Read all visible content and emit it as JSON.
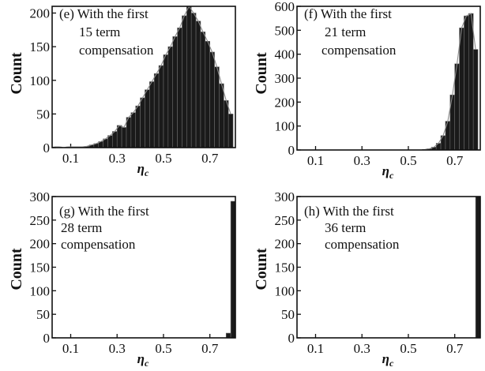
{
  "chart_data": [
    {
      "type": "bar",
      "panel": "(e)",
      "annotation": [
        "(e) With the first",
        "15 term",
        "compensation"
      ],
      "xlabel": "η",
      "xlabel_sub": "c",
      "ylabel": "Count",
      "xlim": [
        0.02,
        0.81
      ],
      "ylim": [
        0,
        210
      ],
      "xticks": [
        0.1,
        0.3,
        0.5,
        0.7
      ],
      "yticks": [
        0,
        50,
        100,
        150,
        200
      ],
      "bin_width": 0.02,
      "bin_centers": [
        0.03,
        0.05,
        0.07,
        0.09,
        0.11,
        0.13,
        0.15,
        0.17,
        0.19,
        0.21,
        0.23,
        0.25,
        0.27,
        0.29,
        0.31,
        0.33,
        0.35,
        0.37,
        0.39,
        0.41,
        0.43,
        0.45,
        0.47,
        0.49,
        0.51,
        0.53,
        0.55,
        0.57,
        0.59,
        0.61,
        0.63,
        0.65,
        0.67,
        0.69,
        0.71,
        0.73,
        0.75,
        0.77,
        0.79
      ],
      "values": [
        1,
        1,
        0,
        1,
        1,
        1,
        1,
        2,
        4,
        6,
        9,
        13,
        18,
        24,
        33,
        30,
        45,
        52,
        62,
        74,
        86,
        98,
        110,
        122,
        138,
        150,
        165,
        178,
        196,
        210,
        200,
        188,
        172,
        158,
        142,
        120,
        95,
        70,
        50
      ],
      "fit": true
    },
    {
      "type": "bar",
      "panel": "(f)",
      "annotation": [
        "(f) With the first",
        "21 term",
        "compensation"
      ],
      "xlabel": "η",
      "xlabel_sub": "c",
      "ylabel": "Count",
      "xlim": [
        0.02,
        0.81
      ],
      "ylim": [
        0,
        600
      ],
      "xticks": [
        0.1,
        0.3,
        0.5,
        0.7
      ],
      "yticks": [
        0,
        100,
        200,
        300,
        400,
        500,
        600
      ],
      "bin_width": 0.02,
      "bin_centers": [
        0.57,
        0.59,
        0.61,
        0.63,
        0.65,
        0.67,
        0.69,
        0.71,
        0.73,
        0.75,
        0.77,
        0.79
      ],
      "values": [
        2,
        5,
        12,
        28,
        60,
        120,
        230,
        360,
        510,
        560,
        570,
        420
      ],
      "fit": true
    },
    {
      "type": "bar",
      "panel": "(g)",
      "annotation": [
        "(g) With the first",
        "28 term",
        "compensation"
      ],
      "xlabel": "η",
      "xlabel_sub": "c",
      "ylabel": "Count",
      "xlim": [
        0.02,
        0.81
      ],
      "ylim": [
        0,
        300
      ],
      "xticks": [
        0.1,
        0.3,
        0.5,
        0.7
      ],
      "yticks": [
        0,
        50,
        100,
        150,
        200,
        250,
        300
      ],
      "bin_width": 0.02,
      "bin_centers": [
        0.78,
        0.8
      ],
      "values": [
        10,
        290
      ],
      "fit": false
    },
    {
      "type": "bar",
      "panel": "(h)",
      "annotation": [
        "(h) With the first",
        "36 term",
        "compensation"
      ],
      "xlabel": "η",
      "xlabel_sub": "c",
      "ylabel": "Count",
      "xlim": [
        0.02,
        0.81
      ],
      "ylim": [
        0,
        300
      ],
      "xticks": [
        0.1,
        0.3,
        0.5,
        0.7
      ],
      "yticks": [
        0,
        50,
        100,
        150,
        200,
        250,
        300
      ],
      "bin_width": 0.02,
      "bin_centers": [
        0.8
      ],
      "values": [
        300
      ],
      "fit": false
    }
  ]
}
